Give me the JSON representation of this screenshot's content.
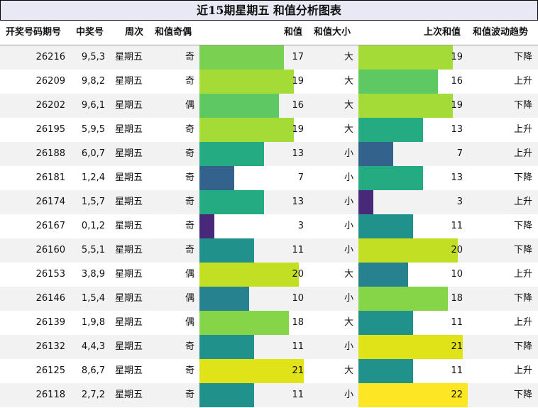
{
  "title": "近15期星期五 和值分析图表",
  "headers": {
    "issue": "开奖号码期号",
    "numbers": "中奖号",
    "weekday": "周次",
    "parity": "和值奇偶",
    "sum": "和值",
    "size": "和值大小",
    "prev_sum": "上次和值",
    "trend": "和值波动趋势"
  },
  "scale_max": 22,
  "rows": [
    {
      "issue": "26216",
      "numbers": "9,5,3",
      "weekday": "星期五",
      "parity": "奇",
      "sum": 17,
      "size": "大",
      "prev_sum": 19,
      "trend": "下降"
    },
    {
      "issue": "26209",
      "numbers": "9,8,2",
      "weekday": "星期五",
      "parity": "奇",
      "sum": 19,
      "size": "大",
      "prev_sum": 16,
      "trend": "上升"
    },
    {
      "issue": "26202",
      "numbers": "9,6,1",
      "weekday": "星期五",
      "parity": "偶",
      "sum": 16,
      "size": "大",
      "prev_sum": 19,
      "trend": "下降"
    },
    {
      "issue": "26195",
      "numbers": "5,9,5",
      "weekday": "星期五",
      "parity": "奇",
      "sum": 19,
      "size": "大",
      "prev_sum": 13,
      "trend": "上升"
    },
    {
      "issue": "26188",
      "numbers": "6,0,7",
      "weekday": "星期五",
      "parity": "奇",
      "sum": 13,
      "size": "小",
      "prev_sum": 7,
      "trend": "上升"
    },
    {
      "issue": "26181",
      "numbers": "1,2,4",
      "weekday": "星期五",
      "parity": "奇",
      "sum": 7,
      "size": "小",
      "prev_sum": 13,
      "trend": "下降"
    },
    {
      "issue": "26174",
      "numbers": "1,5,7",
      "weekday": "星期五",
      "parity": "奇",
      "sum": 13,
      "size": "小",
      "prev_sum": 3,
      "trend": "上升"
    },
    {
      "issue": "26167",
      "numbers": "0,1,2",
      "weekday": "星期五",
      "parity": "奇",
      "sum": 3,
      "size": "小",
      "prev_sum": 11,
      "trend": "下降"
    },
    {
      "issue": "26160",
      "numbers": "5,5,1",
      "weekday": "星期五",
      "parity": "奇",
      "sum": 11,
      "size": "小",
      "prev_sum": 20,
      "trend": "下降"
    },
    {
      "issue": "26153",
      "numbers": "3,8,9",
      "weekday": "星期五",
      "parity": "偶",
      "sum": 20,
      "size": "大",
      "prev_sum": 10,
      "trend": "上升"
    },
    {
      "issue": "26146",
      "numbers": "1,5,4",
      "weekday": "星期五",
      "parity": "偶",
      "sum": 10,
      "size": "小",
      "prev_sum": 18,
      "trend": "下降"
    },
    {
      "issue": "26139",
      "numbers": "1,9,8",
      "weekday": "星期五",
      "parity": "偶",
      "sum": 18,
      "size": "大",
      "prev_sum": 11,
      "trend": "上升"
    },
    {
      "issue": "26132",
      "numbers": "4,4,3",
      "weekday": "星期五",
      "parity": "奇",
      "sum": 11,
      "size": "小",
      "prev_sum": 21,
      "trend": "下降"
    },
    {
      "issue": "26125",
      "numbers": "8,6,7",
      "weekday": "星期五",
      "parity": "奇",
      "sum": 21,
      "size": "大",
      "prev_sum": 11,
      "trend": "上升"
    },
    {
      "issue": "26118",
      "numbers": "2,7,2",
      "weekday": "星期五",
      "parity": "奇",
      "sum": 11,
      "size": "小",
      "prev_sum": 22,
      "trend": "下降"
    }
  ],
  "bar_colors": {
    "3": "#482878",
    "7": "#33638d",
    "10": "#26828e",
    "11": "#21918c",
    "13": "#25ab82",
    "16": "#5ec962",
    "17": "#7ad151",
    "18": "#86d549",
    "19": "#a5db36",
    "20": "#c2df23",
    "21": "#dfe318",
    "22": "#fde725"
  }
}
